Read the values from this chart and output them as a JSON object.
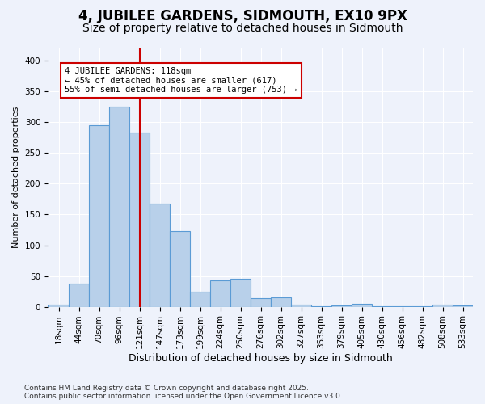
{
  "title": "4, JUBILEE GARDENS, SIDMOUTH, EX10 9PX",
  "subtitle": "Size of property relative to detached houses in Sidmouth",
  "xlabel": "Distribution of detached houses by size in Sidmouth",
  "ylabel": "Number of detached properties",
  "bar_labels": [
    "18sqm",
    "44sqm",
    "70sqm",
    "96sqm",
    "121sqm",
    "147sqm",
    "173sqm",
    "199sqm",
    "224sqm",
    "250sqm",
    "276sqm",
    "302sqm",
    "327sqm",
    "353sqm",
    "379sqm",
    "405sqm",
    "430sqm",
    "456sqm",
    "482sqm",
    "508sqm",
    "533sqm"
  ],
  "bar_values": [
    3,
    38,
    295,
    325,
    283,
    168,
    123,
    25,
    43,
    46,
    14,
    15,
    4,
    1,
    2,
    5,
    1,
    1,
    1,
    4,
    2
  ],
  "bar_color": "#b8d0ea",
  "bar_edge_color": "#5b9bd5",
  "property_line_x": 4,
  "annotation_text": "4 JUBILEE GARDENS: 118sqm\n← 45% of detached houses are smaller (617)\n55% of semi-detached houses are larger (753) →",
  "annotation_box_facecolor": "#ffffff",
  "annotation_border_color": "#cc0000",
  "red_line_color": "#cc0000",
  "ylim": [
    0,
    420
  ],
  "yticks": [
    0,
    50,
    100,
    150,
    200,
    250,
    300,
    350,
    400
  ],
  "bg_color": "#eef2fb",
  "grid_color": "#ffffff",
  "footer_text": "Contains HM Land Registry data © Crown copyright and database right 2025.\nContains public sector information licensed under the Open Government Licence v3.0.",
  "title_fontsize": 12,
  "subtitle_fontsize": 10,
  "xlabel_fontsize": 9,
  "ylabel_fontsize": 8,
  "tick_fontsize": 7.5,
  "annotation_fontsize": 7.5,
  "footer_fontsize": 6.5
}
